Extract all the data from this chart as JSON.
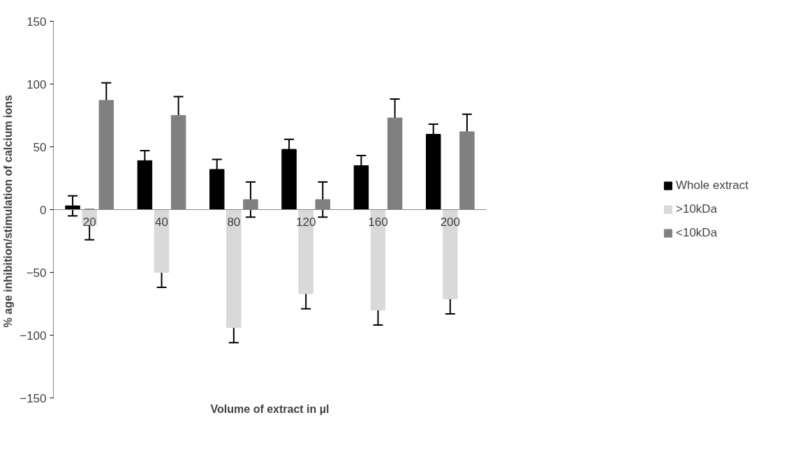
{
  "chart_data": {
    "type": "bar",
    "xlabel": "Volume of extract in µl",
    "ylabel": "% age inhibition/stimulation  of calcium ions",
    "categories": [
      "20",
      "40",
      "80",
      "120",
      "160",
      "200"
    ],
    "series": [
      {
        "name": "Whole extract",
        "color": "#000000",
        "values": [
          3,
          39,
          32,
          48,
          35,
          60
        ],
        "errors": [
          8,
          8,
          8,
          8,
          8,
          8
        ]
      },
      {
        "name": ">10kDa",
        "color": "#d9d9d9",
        "values": [
          -12,
          -50,
          -94,
          -67,
          -80,
          -71
        ],
        "errors": [
          12,
          12,
          12,
          12,
          12,
          12
        ]
      },
      {
        "name": "<10kDa",
        "color": "#808080",
        "values": [
          87,
          75,
          8,
          8,
          73,
          62
        ],
        "errors": [
          14,
          15,
          14,
          14,
          15,
          14
        ]
      }
    ],
    "ylim": [
      -150,
      150
    ],
    "yticks": [
      -150,
      -100,
      -50,
      0,
      50,
      100,
      150
    ],
    "grid": false,
    "legend": "right"
  }
}
